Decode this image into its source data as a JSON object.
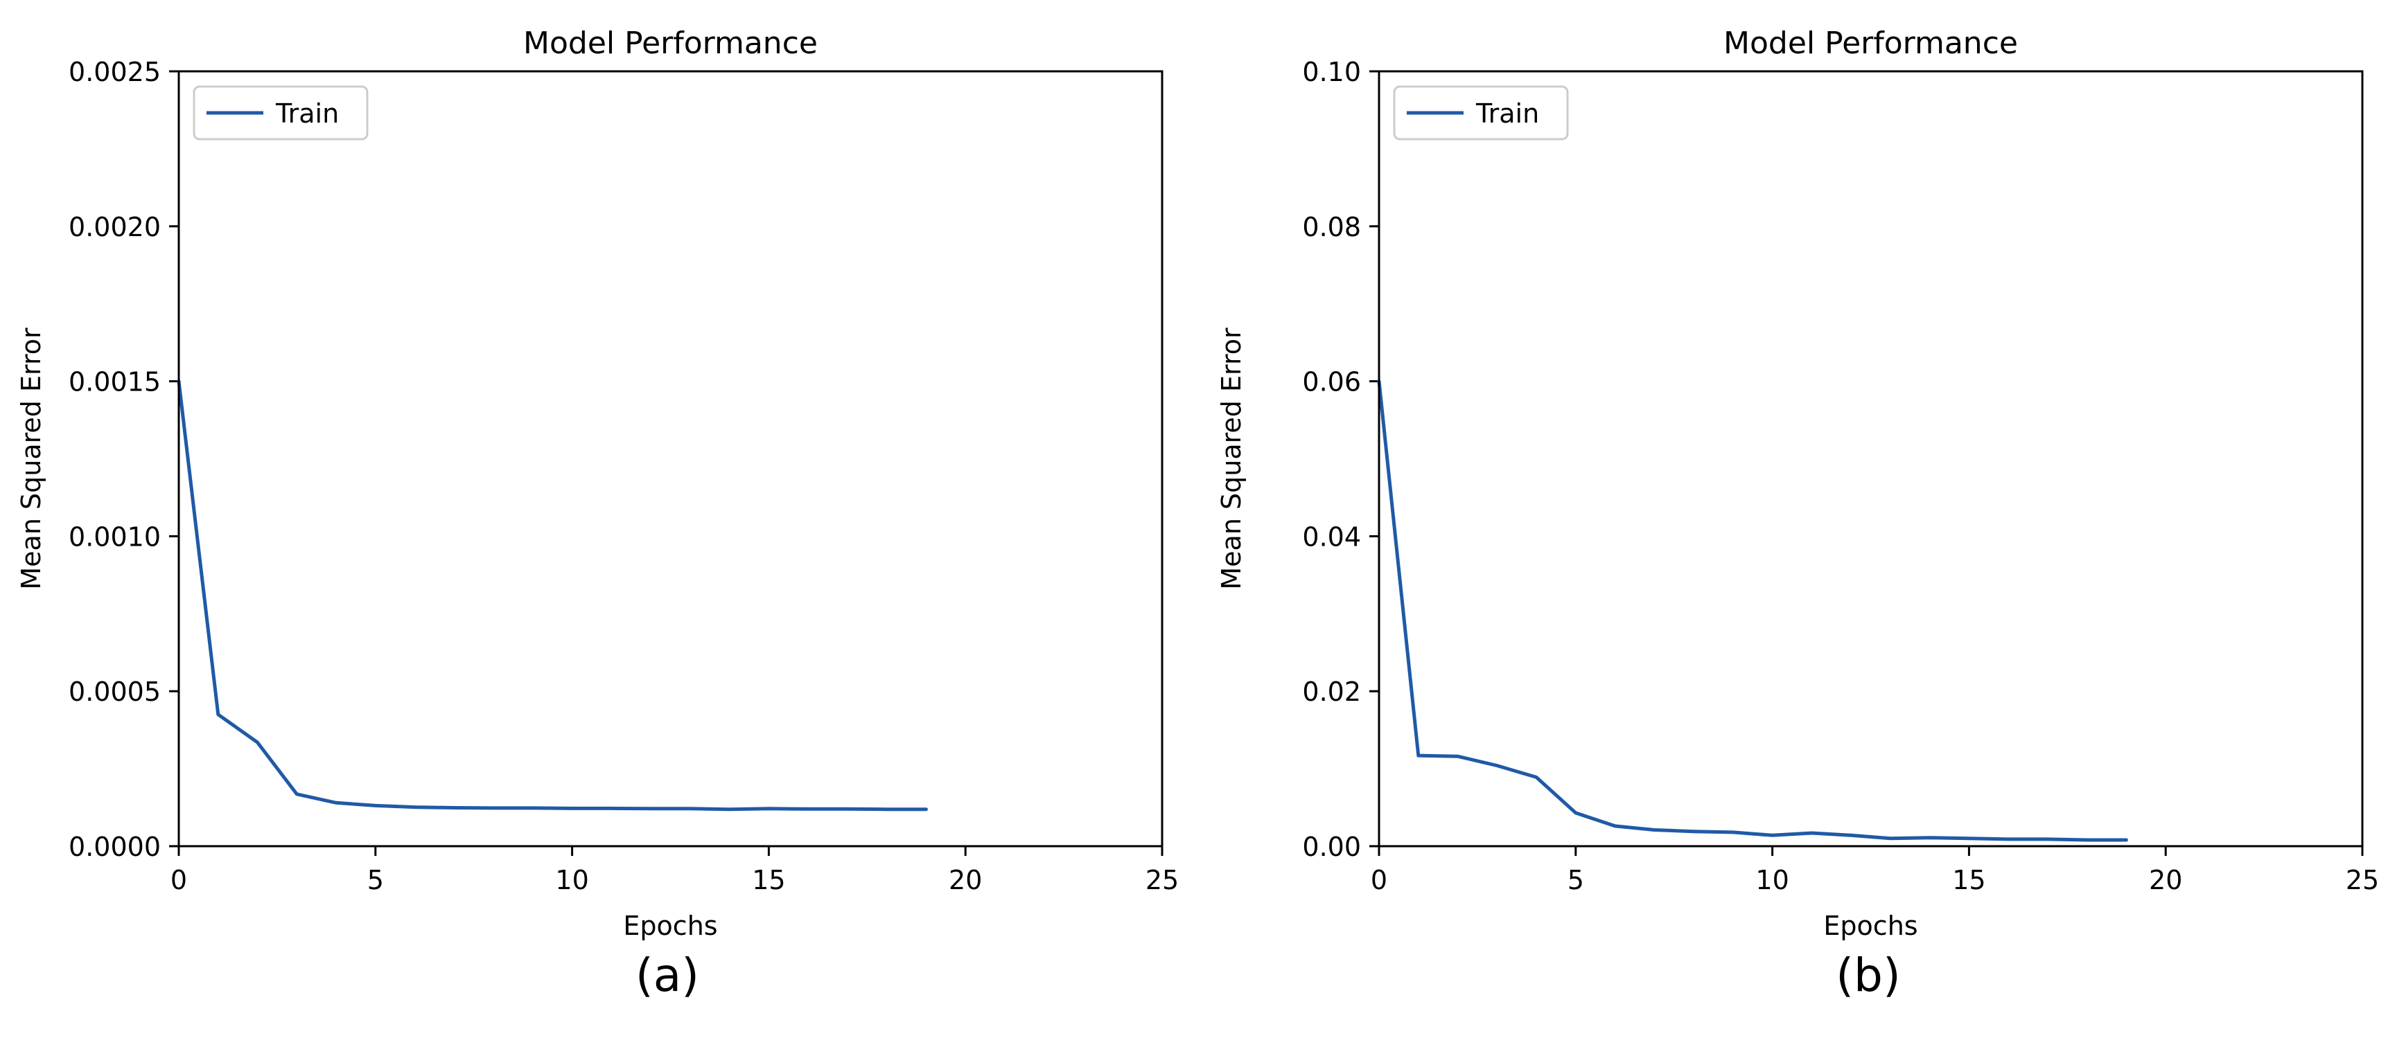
{
  "figure": {
    "panels": [
      {
        "caption": "(a)"
      },
      {
        "caption": "(b)"
      }
    ]
  },
  "chart_data": [
    {
      "type": "line",
      "title": "Model Performance",
      "xlabel": "Epochs",
      "ylabel": "Mean Squared Error",
      "xlim": [
        0,
        25
      ],
      "ylim": [
        0,
        0.0025
      ],
      "xticks": [
        0,
        5,
        10,
        15,
        20,
        25
      ],
      "xtick_labels": [
        "0",
        "5",
        "10",
        "15",
        "20",
        "25"
      ],
      "yticks": [
        0,
        0.0005,
        0.001,
        0.0015,
        0.002,
        0.0025
      ],
      "ytick_labels": [
        "0.0000",
        "0.0005",
        "0.0010",
        "0.0015",
        "0.0020",
        "0.0025"
      ],
      "grid": false,
      "legend": "upper-left",
      "series": [
        {
          "name": "Train",
          "color": "#1f5aa6",
          "x": [
            0,
            1,
            2,
            3,
            4,
            5,
            6,
            7,
            8,
            9,
            10,
            11,
            12,
            13,
            14,
            15,
            16,
            17,
            18,
            19
          ],
          "y": [
            0.0015,
            0.000425,
            0.000335,
            0.000168,
            0.00014,
            0.000131,
            0.000126,
            0.000124,
            0.000123,
            0.000123,
            0.000122,
            0.000122,
            0.000121,
            0.000121,
            0.000119,
            0.000121,
            0.00012,
            0.00012,
            0.000119,
            0.000119
          ]
        }
      ]
    },
    {
      "type": "line",
      "title": "Model Performance",
      "xlabel": "Epochs",
      "ylabel": "Mean Squared Error",
      "xlim": [
        0,
        25
      ],
      "ylim": [
        0,
        0.1
      ],
      "xticks": [
        0,
        5,
        10,
        15,
        20,
        25
      ],
      "xtick_labels": [
        "0",
        "5",
        "10",
        "15",
        "20",
        "25"
      ],
      "yticks": [
        0,
        0.02,
        0.04,
        0.06,
        0.08,
        0.1
      ],
      "ytick_labels": [
        "0.00",
        "0.02",
        "0.04",
        "0.06",
        "0.08",
        "0.10"
      ],
      "grid": false,
      "legend": "upper-left",
      "series": [
        {
          "name": "Train",
          "color": "#1f5aa6",
          "x": [
            0,
            1,
            2,
            3,
            4,
            5,
            6,
            7,
            8,
            9,
            10,
            11,
            12,
            13,
            14,
            15,
            16,
            17,
            18,
            19
          ],
          "y": [
            0.06,
            0.0117,
            0.0116,
            0.0104,
            0.0089,
            0.0043,
            0.0026,
            0.0021,
            0.0019,
            0.0018,
            0.0014,
            0.0017,
            0.0014,
            0.001,
            0.0011,
            0.001,
            0.0009,
            0.0009,
            0.0008,
            0.0008
          ]
        }
      ]
    }
  ]
}
